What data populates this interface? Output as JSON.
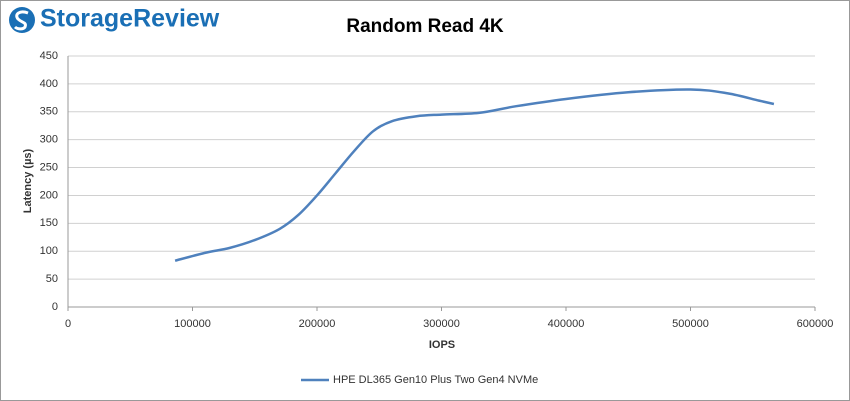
{
  "logo": "StorageReview",
  "chart_data": {
    "type": "line",
    "title": "Random Read 4K",
    "x_label": "IOPS",
    "y_label": "Latency (µs)",
    "x": [
      86000,
      110000,
      130000,
      150000,
      170000,
      185000,
      200000,
      215000,
      230000,
      245000,
      260000,
      280000,
      300000,
      330000,
      360000,
      400000,
      450000,
      500000,
      530000,
      555000,
      567000
    ],
    "series": [
      {
        "name": "HPE DL365 Gen10 Plus Two Gen4 NVMe",
        "color": "#4f81bd",
        "values": [
          83,
          97,
          106,
          120,
          140,
          165,
          200,
          240,
          280,
          315,
          333,
          342,
          345,
          348,
          360,
          373,
          385,
          390,
          383,
          370,
          364
        ]
      }
    ],
    "xlim": [
      0,
      600000
    ],
    "xticks": [
      0,
      100000,
      200000,
      300000,
      400000,
      500000,
      600000
    ],
    "ylim": [
      0,
      450
    ],
    "yticks": [
      0,
      50,
      100,
      150,
      200,
      250,
      300,
      350,
      400,
      450
    ],
    "grid": true,
    "legend": "bottom"
  }
}
